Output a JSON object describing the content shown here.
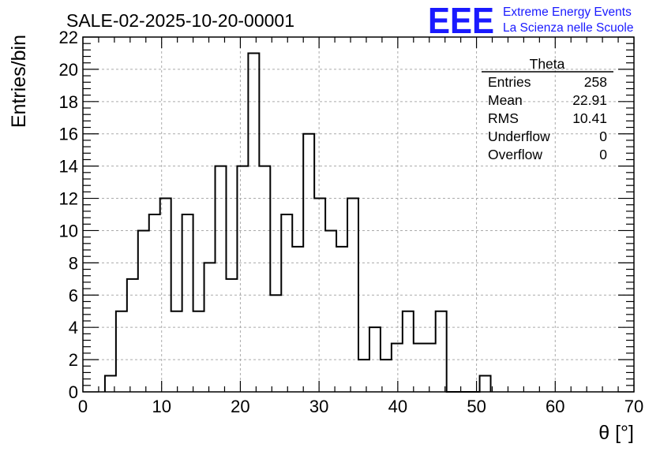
{
  "chart_data": {
    "type": "histogram",
    "title": "SALE-02-2025-10-20-00001",
    "xlabel": "θ [°]",
    "ylabel": "Entries/bin",
    "xlim": [
      0,
      70
    ],
    "ylim": [
      0,
      22
    ],
    "x_major_ticks": [
      0,
      10,
      20,
      30,
      40,
      50,
      60,
      70
    ],
    "y_major_ticks": [
      0,
      2,
      4,
      6,
      8,
      10,
      12,
      14,
      16,
      18,
      20,
      22
    ],
    "grid": true,
    "bin_width": 1.4,
    "bin_start": 2.8,
    "counts": [
      1,
      5,
      7,
      10,
      11,
      12,
      5,
      11,
      5,
      8,
      14,
      7,
      14,
      21,
      14,
      6,
      11,
      9,
      16,
      12,
      10,
      9,
      12,
      2,
      4,
      2,
      3,
      5,
      3,
      3,
      5,
      0,
      0,
      0,
      1
    ],
    "stats": {
      "name": "Theta",
      "rows": [
        {
          "label": "Entries",
          "value": "258"
        },
        {
          "label": "Mean",
          "value": "22.91"
        },
        {
          "label": "RMS",
          "value": "10.41"
        },
        {
          "label": "Underflow",
          "value": "0"
        },
        {
          "label": "Overflow",
          "value": "0"
        }
      ]
    }
  },
  "logo": {
    "mark": "EEE",
    "line1": "Extreme Energy Events",
    "line2": "La Scienza nelle Scuole",
    "color": "#1a1aff"
  }
}
